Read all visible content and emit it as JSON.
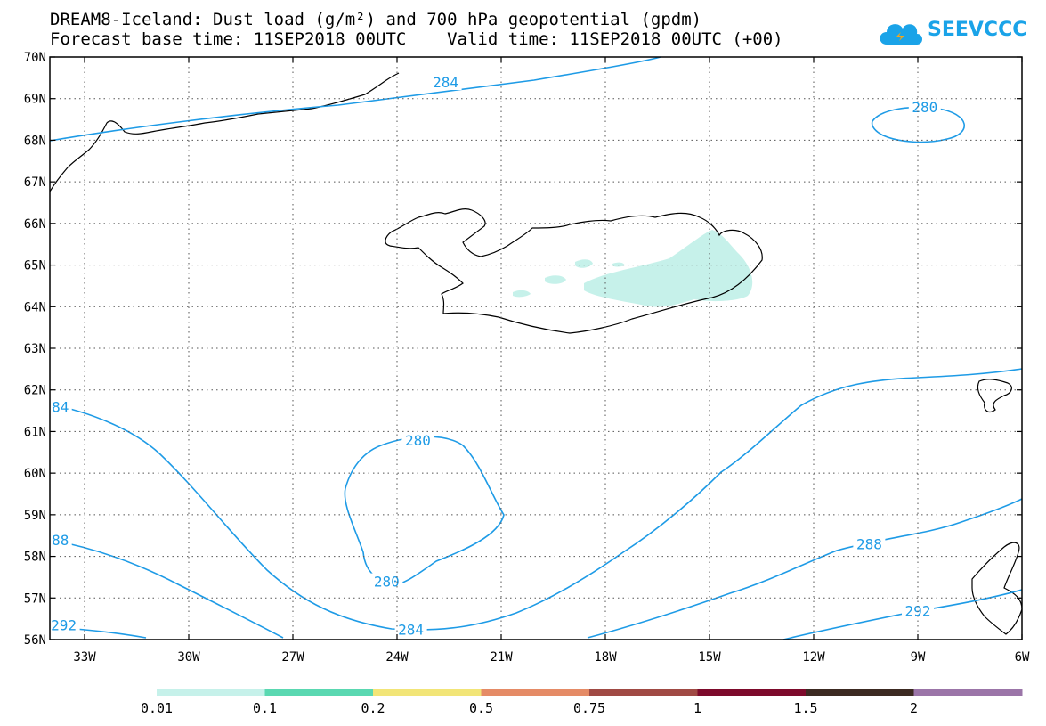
{
  "title_line1": "DREAM8-Iceland: Dust load (g/m²) and 700 hPa geopotential (gpdm)",
  "title_line2": "Forecast base time: 11SEP2018 00UTC    Valid time: 11SEP2018 00UTC (+00)",
  "logo_text": "SEEVCCC",
  "map": {
    "lon_range": [
      -34,
      -6
    ],
    "lat_range": [
      56,
      70
    ],
    "lon_ticks": [
      {
        "value": -33,
        "label": "33W"
      },
      {
        "value": -30,
        "label": "30W"
      },
      {
        "value": -27,
        "label": "27W"
      },
      {
        "value": -24,
        "label": "24W"
      },
      {
        "value": -21,
        "label": "21W"
      },
      {
        "value": -18,
        "label": "18W"
      },
      {
        "value": -15,
        "label": "15W"
      },
      {
        "value": -12,
        "label": "12W"
      },
      {
        "value": -9,
        "label": "9W"
      },
      {
        "value": -6,
        "label": "6W"
      }
    ],
    "lat_ticks": [
      {
        "value": 70,
        "label": "70N"
      },
      {
        "value": 69,
        "label": "69N"
      },
      {
        "value": 68,
        "label": "68N"
      },
      {
        "value": 67,
        "label": "67N"
      },
      {
        "value": 66,
        "label": "66N"
      },
      {
        "value": 65,
        "label": "65N"
      },
      {
        "value": 64,
        "label": "64N"
      },
      {
        "value": 63,
        "label": "63N"
      },
      {
        "value": 62,
        "label": "62N"
      },
      {
        "value": 61,
        "label": "61N"
      },
      {
        "value": 60,
        "label": "60N"
      },
      {
        "value": 59,
        "label": "59N"
      },
      {
        "value": 58,
        "label": "58N"
      },
      {
        "value": 57,
        "label": "57N"
      },
      {
        "value": 56,
        "label": "56N"
      }
    ],
    "grid": "dotted",
    "coastline_color": "#000000",
    "contour_color": "#1e9be6",
    "dust_color": "#c6f1ea"
  },
  "contour_labels": [
    {
      "text": "284",
      "lon": -22.6,
      "lat": 69.4
    },
    {
      "text": "280",
      "lon": -8.8,
      "lat": 68.8
    },
    {
      "text": "84",
      "lon": -33.7,
      "lat": 61.6
    },
    {
      "text": "280",
      "lon": -23.4,
      "lat": 60.8
    },
    {
      "text": "88",
      "lon": -33.7,
      "lat": 58.4
    },
    {
      "text": "280",
      "lon": -24.3,
      "lat": 57.4
    },
    {
      "text": "292",
      "lon": -33.6,
      "lat": 56.35
    },
    {
      "text": "284",
      "lon": -23.6,
      "lat": 56.25
    },
    {
      "text": "288",
      "lon": -10.4,
      "lat": 58.3
    },
    {
      "text": "292",
      "lon": -9.0,
      "lat": 56.7
    }
  ],
  "colorbar": {
    "colors": [
      "#c6f1ea",
      "#5ad8b1",
      "#f2e577",
      "#e58b66",
      "#a04a44",
      "#7d0a2b",
      "#3c2a22",
      "#9b75a8"
    ],
    "labels": [
      "0.01",
      "0.1",
      "0.2",
      "0.5",
      "0.75",
      "1",
      "1.5",
      "2"
    ]
  }
}
